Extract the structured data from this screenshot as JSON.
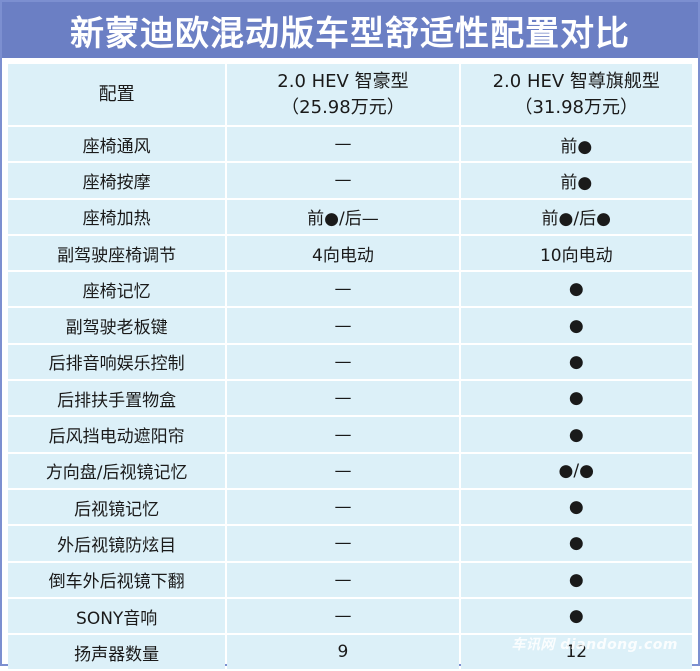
{
  "title": "新蒙迪欧混动版车型舒适性配置对比",
  "header": {
    "feature_label": "配置",
    "trim_a_name": "2.0 HEV 智豪型",
    "trim_a_price": "（25.98万元）",
    "trim_b_name": "2.0 HEV 智尊旗舰型",
    "trim_b_price": "（31.98万元）"
  },
  "rows": [
    {
      "feature": "座椅通风",
      "a": "—",
      "b": "前●"
    },
    {
      "feature": "座椅按摩",
      "a": "—",
      "b": "前●"
    },
    {
      "feature": "座椅加热",
      "a": "前●/后—",
      "b": "前●/后●"
    },
    {
      "feature": "副驾驶座椅调节",
      "a": "4向电动",
      "b": "10向电动"
    },
    {
      "feature": "座椅记忆",
      "a": "—",
      "b": "●"
    },
    {
      "feature": "副驾驶老板键",
      "a": "—",
      "b": "●"
    },
    {
      "feature": "后排音响娱乐控制",
      "a": "—",
      "b": "●"
    },
    {
      "feature": "后排扶手置物盒",
      "a": "—",
      "b": "●"
    },
    {
      "feature": "后风挡电动遮阳帘",
      "a": "—",
      "b": "●"
    },
    {
      "feature": "方向盘/后视镜记忆",
      "a": "—",
      "b": "●/●"
    },
    {
      "feature": "后视镜记忆",
      "a": "—",
      "b": "●"
    },
    {
      "feature": "外后视镜防炫目",
      "a": "—",
      "b": "●"
    },
    {
      "feature": "倒车外后视镜下翻",
      "a": "—",
      "b": "●"
    },
    {
      "feature": "SONY音响",
      "a": "—",
      "b": "●"
    },
    {
      "feature": "扬声器数量",
      "a": "9",
      "b": "12"
    }
  ],
  "watermark": "车讯网 diandong.com",
  "colors": {
    "title_bg": "#6b7fc4",
    "cell_bg": "#dcf0f8",
    "border": "#7c8fd0"
  }
}
